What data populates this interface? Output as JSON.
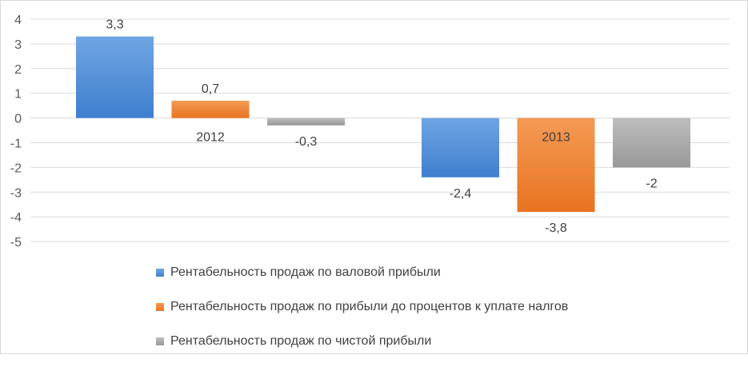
{
  "chart_data": {
    "type": "bar",
    "categories": [
      "2012",
      "2013"
    ],
    "series": [
      {
        "name": "Рентабельность продаж по валовой прибыли",
        "values": [
          3.3,
          -2.4
        ],
        "labels": [
          "3,3",
          "-2,4"
        ],
        "color": "#4a8ad6"
      },
      {
        "name": "Рентабельность продаж по прибыли до процентов к уплате налгов",
        "values": [
          0.7,
          -3.8
        ],
        "labels": [
          "0,7",
          "-3,8"
        ],
        "color": "#ed7d31"
      },
      {
        "name": "Рентабельность продаж по чистой прибыли",
        "values": [
          -0.3,
          -2
        ],
        "labels": [
          "-0,3",
          "-2"
        ],
        "color": "#a5a5a5"
      }
    ],
    "ylim": [
      -5,
      4
    ],
    "yticks": [
      "4",
      "3",
      "2",
      "1",
      "0",
      "-1",
      "-2",
      "-3",
      "-4",
      "-5"
    ],
    "grid": true,
    "legend_position": "bottom-left"
  }
}
